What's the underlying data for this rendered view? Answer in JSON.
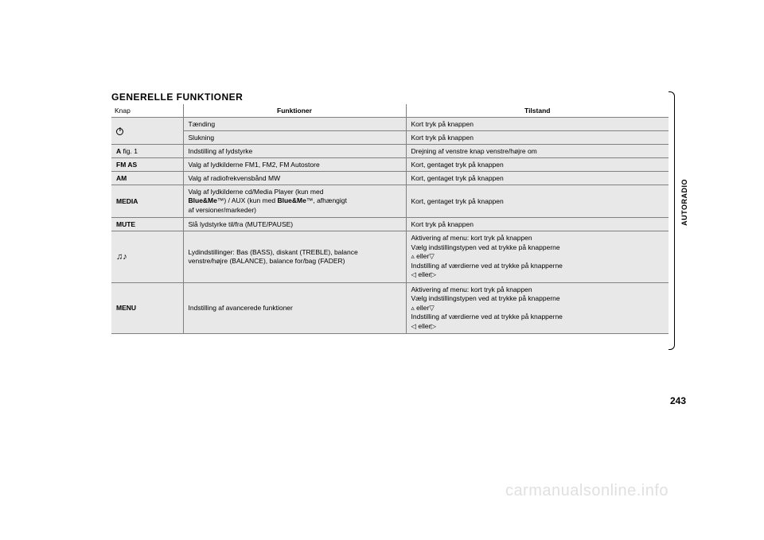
{
  "page": {
    "title": "GENERELLE FUNKTIONER",
    "sidebar_label": "AUTORADIO",
    "page_number": "243",
    "watermark": "carmanualsonline.info"
  },
  "table": {
    "headers": {
      "knap": "Knap",
      "funktioner": "Funktioner",
      "tilstand": "Tilstand"
    },
    "rows": [
      {
        "knap_type": "power-icon",
        "knap": "",
        "funktioner": "Tænding",
        "tilstand": "Kort tryk på knappen",
        "rowspan_knap": 2
      },
      {
        "funktioner": "Slukning",
        "tilstand": "Kort tryk på knappen"
      },
      {
        "knap_bold": "A",
        "knap_normal": " fig. 1",
        "funktioner": "Indstilling af lydstyrke",
        "tilstand": "Drejning af venstre knap venstre/højre om"
      },
      {
        "knap_bold": "FM AS",
        "funktioner": "Valg af lydkilderne FM1, FM2, FM Autostore",
        "tilstand": "Kort, gentaget tryk på knappen"
      },
      {
        "knap_bold": "AM",
        "funktioner": "Valg af radiofrekvensbånd MW",
        "tilstand": "Kort, gentaget tryk på knappen"
      },
      {
        "knap_bold": "MEDIA",
        "funktioner_html": "Valg af lydkilderne cd/Media Player (kun med<br><b>Blue&Me</b>™) / AUX (kun med <b>Blue&Me</b>™, afhængigt<br>af versioner/markeder)",
        "tilstand": "Kort, gentaget tryk på knappen"
      },
      {
        "knap_bold": "MUTE",
        "funktioner": "Slå lydstyrke til/fra (MUTE/PAUSE)",
        "tilstand": "Kort tryk på knappen"
      },
      {
        "knap_type": "music-icon",
        "knap": "♫♪",
        "funktioner_html": "Lydindstillinger: Bas (BASS), diskant (TREBLE), balance<br>venstre/højre (BALANCE), balance for/bag (FADER)",
        "tilstand_html": "Aktivering af menu: kort tryk på knappen<br>Vælg indstillingstypen ved at trykke på knapperne<br>▵ eller▽<br>Indstilling af værdierne ved at trykke på knapperne<br>◁ eller▷"
      },
      {
        "knap_bold": "MENU",
        "funktioner": "Indstilling af avancerede funktioner",
        "tilstand_html": "Aktivering af menu: kort tryk på knappen<br>Vælg indstillingstypen ved at trykke på knapperne<br>▵ eller▽<br>Indstilling af værdierne ved at trykke på knapperne<br>◁ eller▷"
      }
    ]
  }
}
